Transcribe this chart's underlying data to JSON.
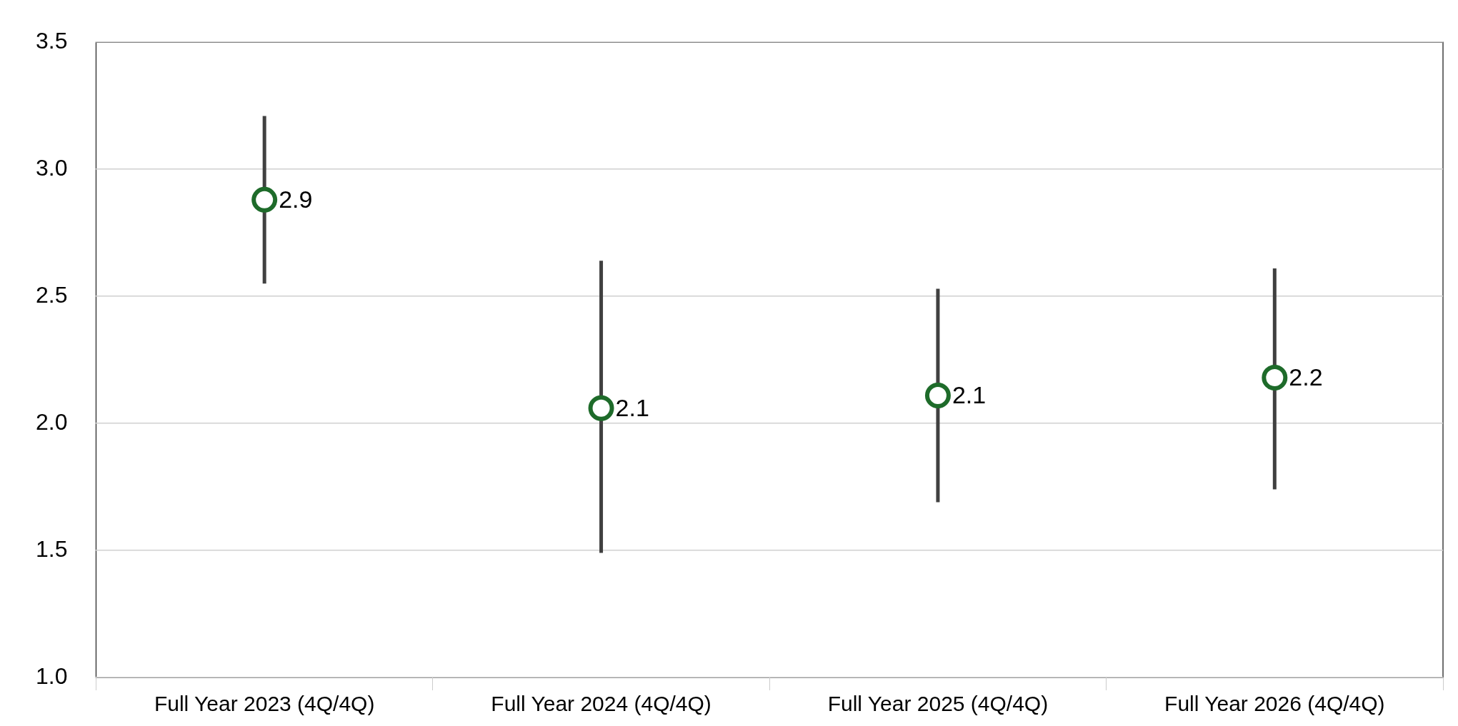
{
  "chart_data": {
    "type": "scatter",
    "categories": [
      "Full Year 2023 (4Q/4Q)",
      "Full Year 2024 (4Q/4Q)",
      "Full Year 2025 (4Q/4Q)",
      "Full Year 2026 (4Q/4Q)"
    ],
    "series": [
      {
        "color": "#1e6b2a",
        "values": [
          2.88,
          2.06,
          2.11,
          2.18
        ],
        "errors": [
          [
            2.55,
            3.21
          ],
          [
            1.49,
            2.64
          ],
          [
            1.69,
            2.53
          ],
          [
            1.74,
            2.61
          ]
        ],
        "value_labels": [
          "2.9",
          "2.1",
          "2.1",
          "2.2"
        ]
      }
    ],
    "ylim": [
      1.0,
      3.5
    ],
    "yticks": [
      {
        "value": 1.0,
        "label": "1.0"
      },
      {
        "value": 1.5,
        "label": "1.5"
      },
      {
        "value": 2.0,
        "label": "2.0"
      },
      {
        "value": 2.5,
        "label": "2.5"
      },
      {
        "value": 3.0,
        "label": "3.0"
      },
      {
        "value": 3.5,
        "label": "3.5"
      }
    ],
    "grid": "y",
    "marker": "circle",
    "legend": false
  }
}
